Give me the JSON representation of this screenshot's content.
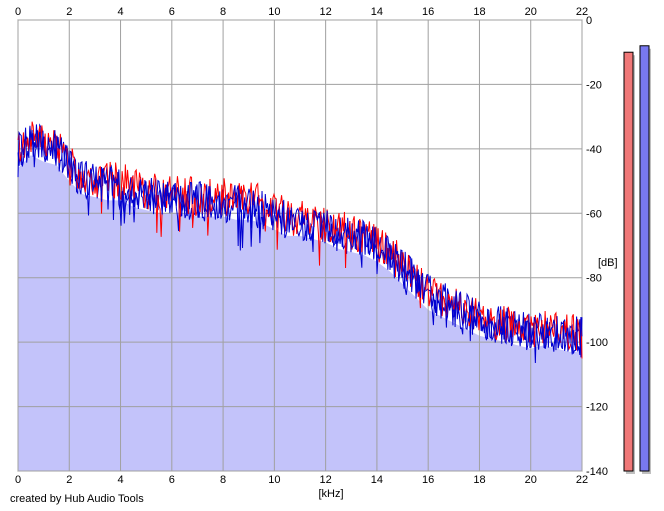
{
  "credit": "created by Hub Audio Tools",
  "chart_data": {
    "type": "line",
    "xlabel": "[kHz]",
    "ylabel": "[dB]",
    "xlim": [
      0,
      22
    ],
    "ylim": [
      -140,
      0
    ],
    "x_ticks": [
      0,
      2,
      4,
      6,
      8,
      10,
      12,
      14,
      16,
      18,
      20,
      22
    ],
    "y_ticks": [
      0,
      -20,
      -40,
      -60,
      -80,
      -100,
      -120,
      -140
    ],
    "grid": true,
    "colors": {
      "fill": "#c3c3fa",
      "left_channel": "#ff0000",
      "right_channel": "#0000d0",
      "meter_left": "#f07878",
      "meter_right": "#7878f0"
    },
    "series": [
      {
        "color": "#ff0000",
        "x": [
          0,
          0.5,
          1,
          1.5,
          2,
          2.5,
          3,
          3.5,
          4,
          4.5,
          5,
          5.5,
          6,
          6.5,
          7,
          7.5,
          8,
          8.5,
          9,
          9.5,
          10,
          10.5,
          11,
          11.5,
          12,
          12.5,
          13,
          13.5,
          14,
          14.5,
          15,
          15.5,
          16,
          16.5,
          17,
          17.5,
          18,
          18.5,
          19,
          19.5,
          20,
          20.5,
          21,
          21.5,
          22
        ],
        "values": [
          -40,
          -36,
          -38,
          -39,
          -44,
          -48,
          -49,
          -50,
          -50,
          -52,
          -53,
          -54,
          -54,
          -54,
          -55,
          -55,
          -55,
          -56,
          -56,
          -57,
          -59,
          -61,
          -61,
          -62,
          -63,
          -65,
          -66,
          -67,
          -69,
          -72,
          -76,
          -80,
          -84,
          -86,
          -88,
          -90,
          -92,
          -93,
          -94,
          -95,
          -96,
          -95,
          -96,
          -97,
          -97
        ]
      },
      {
        "color": "#0000d0",
        "x": [
          0,
          0.5,
          1,
          1.5,
          2,
          2.5,
          3,
          3.5,
          4,
          4.5,
          5,
          5.5,
          6,
          6.5,
          7,
          7.5,
          8,
          8.5,
          9,
          9.5,
          10,
          10.5,
          11,
          11.5,
          12,
          12.5,
          13,
          13.5,
          14,
          14.5,
          15,
          15.5,
          16,
          16.5,
          17,
          17.5,
          18,
          18.5,
          19,
          19.5,
          20,
          20.5,
          21,
          21.5,
          22
        ],
        "values": [
          -41,
          -37,
          -38,
          -40,
          -46,
          -49,
          -50,
          -51,
          -52,
          -53,
          -54,
          -55,
          -55,
          -56,
          -56,
          -57,
          -57,
          -57,
          -58,
          -59,
          -61,
          -62,
          -63,
          -64,
          -64,
          -66,
          -67,
          -68,
          -70,
          -73,
          -77,
          -81,
          -85,
          -87,
          -89,
          -91,
          -93,
          -94,
          -95,
          -96,
          -97,
          -97,
          -97,
          -98,
          -98
        ]
      }
    ],
    "meters": [
      {
        "color": "#f07878",
        "level_db": -10
      },
      {
        "color": "#7878f0",
        "level_db": -8
      }
    ]
  }
}
